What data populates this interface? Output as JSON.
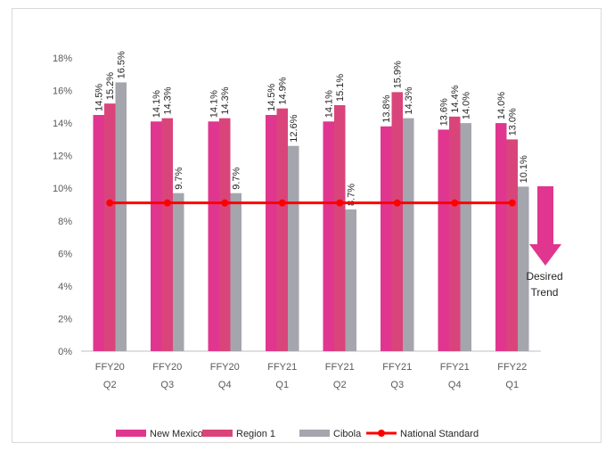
{
  "chart_data": {
    "type": "bar",
    "categories": [
      [
        "FFY20",
        "Q2"
      ],
      [
        "FFY20",
        "Q3"
      ],
      [
        "FFY20",
        "Q4"
      ],
      [
        "FFY21",
        "Q1"
      ],
      [
        "FFY21",
        "Q2"
      ],
      [
        "FFY21",
        "Q3"
      ],
      [
        "FFY21",
        "Q4"
      ],
      [
        "FFY22",
        "Q1"
      ]
    ],
    "series": [
      {
        "name": "New Mexico",
        "color": "#e0368f",
        "values": [
          14.5,
          14.1,
          14.1,
          14.5,
          14.1,
          13.8,
          13.6,
          14.0
        ],
        "labels": [
          "14.5%",
          "14.1%",
          "14.1%",
          "14.5%",
          "14.1%",
          "13.8%",
          "13.6%",
          "14.0%"
        ]
      },
      {
        "name": "Region 1",
        "color": "#d9457a",
        "values": [
          15.2,
          14.3,
          14.3,
          14.9,
          15.1,
          15.9,
          14.4,
          13.0
        ],
        "labels": [
          "15.2%",
          "14.3%",
          "14.3%",
          "14.9%",
          "15.1%",
          "15.9%",
          "14.4%",
          "13.0%"
        ]
      },
      {
        "name": "Cibola",
        "color": "#a5a5ad",
        "values": [
          16.5,
          9.7,
          9.7,
          12.6,
          8.7,
          14.3,
          14.0,
          10.1
        ],
        "labels": [
          "16.5%",
          "9.7%",
          "9.7%",
          "12.6%",
          "8.7%",
          "14.3%",
          "14.0%",
          "10.1%"
        ]
      }
    ],
    "national_standard": {
      "name": "National Standard",
      "color": "#ff0000",
      "value": 9.1
    },
    "ylim": [
      0,
      18
    ],
    "yticks": [
      "0%",
      "2%",
      "4%",
      "6%",
      "8%",
      "10%",
      "12%",
      "14%",
      "16%",
      "18%"
    ],
    "legend_position": "bottom",
    "annotation": {
      "lines": [
        "Desired",
        "Trend"
      ],
      "arrow_color": "#e0368f"
    }
  }
}
